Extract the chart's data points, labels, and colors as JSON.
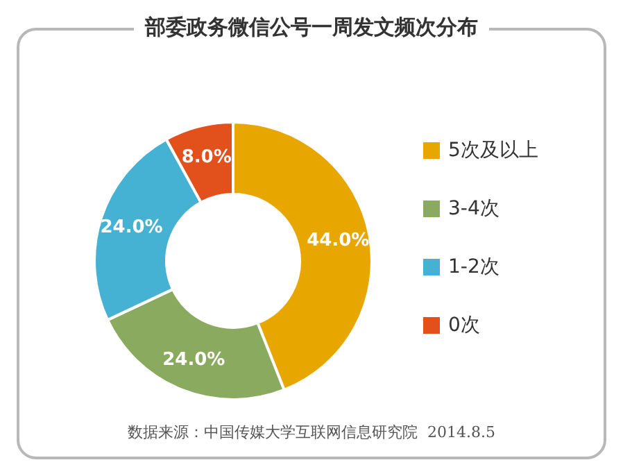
{
  "chart_data": {
    "type": "donut",
    "title": "部委政务微信公号一周发文频次分布",
    "categories": [
      "5次及以上",
      "3-4次",
      "1-2次",
      "0次"
    ],
    "values": [
      44,
      24,
      24,
      8
    ],
    "value_labels": [
      "44.0%",
      "24.0%",
      "24.0%",
      "8.0%"
    ],
    "colors": [
      "#e8a600",
      "#8aab5f",
      "#45b2d4",
      "#e2501c"
    ],
    "legend": "right",
    "annotations": [
      "数据来源：中国传媒大学互联网信息研究院  2014.8.5"
    ]
  }
}
